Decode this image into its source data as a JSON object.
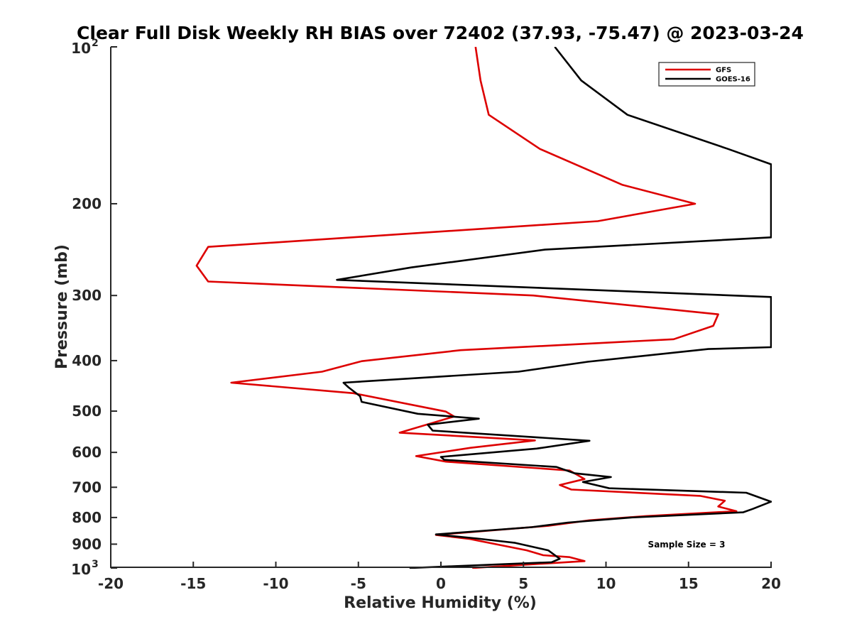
{
  "chart_data": {
    "type": "line",
    "title": "Clear Full Disk Weekly RH BIAS over 72402 (37.93, -75.47) @ 2023-03-24",
    "xlabel": "Relative Humidity (%)",
    "ylabel": "Pressure (mb)",
    "xlim": [
      -20,
      20
    ],
    "ylim": [
      100,
      1000
    ],
    "yscale": "log",
    "y_reversed": true,
    "x_ticks": [
      -20,
      -15,
      -10,
      -5,
      0,
      5,
      10,
      15,
      20
    ],
    "x_tick_labels": [
      "-20",
      "-15",
      "-10",
      "-5",
      "0",
      "5",
      "10",
      "15",
      "20"
    ],
    "y_ticks": [
      {
        "value": 100,
        "base": "10",
        "exp": "2"
      },
      {
        "value": 200,
        "label": "200"
      },
      {
        "value": 300,
        "label": "300"
      },
      {
        "value": 400,
        "label": "400"
      },
      {
        "value": 500,
        "label": "500"
      },
      {
        "value": 600,
        "label": "600"
      },
      {
        "value": 700,
        "label": "700"
      },
      {
        "value": 800,
        "label": "800"
      },
      {
        "value": 900,
        "label": "900"
      },
      {
        "value": 1000,
        "base": "10",
        "exp": "3"
      }
    ],
    "legend_position": "top-right",
    "annotation": "Sample Size = 3",
    "series": [
      {
        "name": "GFS",
        "color": "#dd0000",
        "points": [
          [
            2.1,
            100
          ],
          [
            2.4,
            116
          ],
          [
            2.9,
            135
          ],
          [
            6.0,
            157
          ],
          [
            11.0,
            184
          ],
          [
            15.4,
            200
          ],
          [
            9.5,
            216
          ],
          [
            -14.1,
            242
          ],
          [
            -14.8,
            263
          ],
          [
            -14.1,
            282
          ],
          [
            5.6,
            300
          ],
          [
            16.8,
            326
          ],
          [
            16.5,
            343
          ],
          [
            14.1,
            364
          ],
          [
            1.2,
            382
          ],
          [
            -4.8,
            401
          ],
          [
            -7.2,
            420
          ],
          [
            -12.7,
            441
          ],
          [
            -5.3,
            462
          ],
          [
            0.3,
            501
          ],
          [
            0.8,
            512
          ],
          [
            -2.5,
            550
          ],
          [
            5.7,
            569
          ],
          [
            1.8,
            588
          ],
          [
            -1.5,
            610
          ],
          [
            0.3,
            625
          ],
          [
            7.8,
            650
          ],
          [
            8.7,
            675
          ],
          [
            7.2,
            693
          ],
          [
            7.9,
            707
          ],
          [
            15.7,
            727
          ],
          [
            17.2,
            743
          ],
          [
            16.8,
            762
          ],
          [
            17.9,
            778
          ],
          [
            12.4,
            795
          ],
          [
            9.0,
            810
          ],
          [
            6.5,
            830
          ],
          [
            -0.3,
            864
          ],
          [
            1.7,
            879
          ],
          [
            5.2,
            925
          ],
          [
            6.2,
            945
          ],
          [
            7.8,
            953
          ],
          [
            8.7,
            970
          ],
          [
            1.9,
            1000
          ]
        ]
      },
      {
        "name": "GOES-16",
        "color": "#000000",
        "points": [
          [
            6.9,
            100
          ],
          [
            8.5,
            116
          ],
          [
            11.3,
            135
          ],
          [
            17.4,
            157
          ],
          [
            20.0,
            168
          ],
          [
            20.0,
            232
          ],
          [
            6.3,
            245
          ],
          [
            -1.8,
            265
          ],
          [
            -6.3,
            280
          ],
          [
            20.0,
            302
          ],
          [
            20.0,
            377
          ],
          [
            16.2,
            380
          ],
          [
            8.9,
            402
          ],
          [
            4.7,
            420
          ],
          [
            -5.9,
            441
          ],
          [
            -5.6,
            450
          ],
          [
            -4.9,
            468
          ],
          [
            -4.8,
            480
          ],
          [
            -1.4,
            506
          ],
          [
            2.3,
            517
          ],
          [
            -0.8,
            531
          ],
          [
            -0.5,
            545
          ],
          [
            9.0,
            570
          ],
          [
            5.8,
            590
          ],
          [
            0.0,
            612
          ],
          [
            0.2,
            620
          ],
          [
            7.0,
            640
          ],
          [
            8.1,
            658
          ],
          [
            10.3,
            669
          ],
          [
            8.6,
            684
          ],
          [
            10.2,
            703
          ],
          [
            18.5,
            717
          ],
          [
            20.0,
            746
          ],
          [
            18.9,
            770
          ],
          [
            18.3,
            782
          ],
          [
            11.5,
            800
          ],
          [
            7.7,
            818
          ],
          [
            5.5,
            835
          ],
          [
            -0.3,
            862
          ],
          [
            2.2,
            878
          ],
          [
            4.5,
            895
          ],
          [
            6.5,
            925
          ],
          [
            7.2,
            960
          ],
          [
            6.7,
            975
          ],
          [
            -1.9,
            1000
          ]
        ]
      }
    ]
  }
}
